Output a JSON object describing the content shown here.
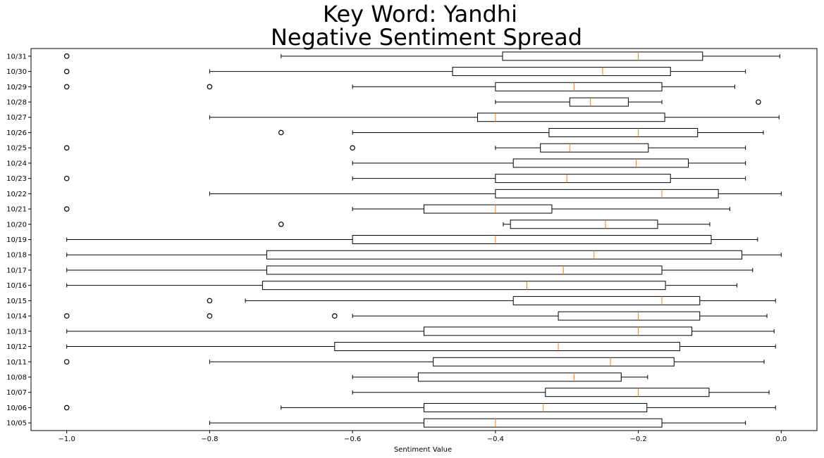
{
  "chart_data": {
    "type": "boxplot",
    "orientation": "horizontal",
    "title_lines": [
      "Key Word: Yandhi",
      "Negative Sentiment Spread"
    ],
    "xlabel": "Sentiment Value",
    "ylabel": "",
    "xlim": [
      -1.05,
      0.05
    ],
    "xticks": [
      -1.0,
      -0.8,
      -0.6,
      -0.4,
      -0.2,
      0.0
    ],
    "xtick_labels": [
      "−1.0",
      "−0.8",
      "−0.6",
      "−0.4",
      "−0.2",
      "0.0"
    ],
    "grid": false,
    "legend": "none",
    "colors": {
      "box": "#000000",
      "median": "#ff7f0e",
      "outlier": "#000000"
    },
    "categories": [
      "10/31",
      "10/30",
      "10/29",
      "10/28",
      "10/27",
      "10/26",
      "10/25",
      "10/24",
      "10/23",
      "10/22",
      "10/21",
      "10/20",
      "10/19",
      "10/18",
      "10/17",
      "10/16",
      "10/15",
      "10/14",
      "10/13",
      "10/12",
      "10/11",
      "10/08",
      "10/07",
      "10/06",
      "10/05"
    ],
    "boxes": [
      {
        "date": "10/31",
        "whislo": -0.7,
        "q1": -0.39,
        "med": -0.2,
        "q3": -0.11,
        "whishi": -0.002,
        "fliers": [
          -1.0
        ]
      },
      {
        "date": "10/30",
        "whislo": -0.8,
        "q1": -0.46,
        "med": -0.25,
        "q3": -0.155,
        "whishi": -0.05,
        "fliers": [
          -1.0
        ]
      },
      {
        "date": "10/29",
        "whislo": -0.6,
        "q1": -0.4,
        "med": -0.29,
        "q3": -0.167,
        "whishi": -0.065,
        "fliers": [
          -1.0,
          -0.8
        ]
      },
      {
        "date": "10/28",
        "whislo": -0.4,
        "q1": -0.296,
        "med": -0.267,
        "q3": -0.214,
        "whishi": -0.167,
        "fliers": [
          -0.032
        ]
      },
      {
        "date": "10/27",
        "whislo": -0.8,
        "q1": -0.425,
        "med": -0.4,
        "q3": -0.163,
        "whishi": -0.003,
        "fliers": []
      },
      {
        "date": "10/26",
        "whislo": -0.6,
        "q1": -0.325,
        "med": -0.2,
        "q3": -0.117,
        "whishi": -0.025,
        "fliers": [
          -0.7
        ]
      },
      {
        "date": "10/25",
        "whislo": -0.4,
        "q1": -0.337,
        "med": -0.296,
        "q3": -0.186,
        "whishi": -0.05,
        "fliers": [
          -1.0,
          -0.6
        ]
      },
      {
        "date": "10/24",
        "whislo": -0.6,
        "q1": -0.375,
        "med": -0.203,
        "q3": -0.13,
        "whishi": -0.05,
        "fliers": []
      },
      {
        "date": "10/23",
        "whislo": -0.6,
        "q1": -0.4,
        "med": -0.3,
        "q3": -0.155,
        "whishi": -0.05,
        "fliers": [
          -1.0
        ]
      },
      {
        "date": "10/22",
        "whislo": -0.8,
        "q1": -0.4,
        "med": -0.167,
        "q3": -0.088,
        "whishi": 0.0,
        "fliers": []
      },
      {
        "date": "10/21",
        "whislo": -0.6,
        "q1": -0.5,
        "med": -0.4,
        "q3": -0.321,
        "whishi": -0.072,
        "fliers": [
          -1.0
        ]
      },
      {
        "date": "10/20",
        "whislo": -0.389,
        "q1": -0.379,
        "med": -0.246,
        "q3": -0.173,
        "whishi": -0.1,
        "fliers": [
          -0.7
        ]
      },
      {
        "date": "10/19",
        "whislo": -1.0,
        "q1": -0.6,
        "med": -0.4,
        "q3": -0.098,
        "whishi": -0.033,
        "fliers": []
      },
      {
        "date": "10/18",
        "whislo": -1.0,
        "q1": -0.72,
        "med": -0.262,
        "q3": -0.055,
        "whishi": 0.0,
        "fliers": []
      },
      {
        "date": "10/17",
        "whislo": -1.0,
        "q1": -0.72,
        "med": -0.305,
        "q3": -0.167,
        "whishi": -0.04,
        "fliers": []
      },
      {
        "date": "10/16",
        "whislo": -1.0,
        "q1": -0.726,
        "med": -0.356,
        "q3": -0.162,
        "whishi": -0.062,
        "fliers": []
      },
      {
        "date": "10/15",
        "whislo": -0.75,
        "q1": -0.375,
        "med": -0.167,
        "q3": -0.114,
        "whishi": -0.008,
        "fliers": [
          -0.8
        ]
      },
      {
        "date": "10/14",
        "whislo": -0.6,
        "q1": -0.312,
        "med": -0.2,
        "q3": -0.114,
        "whishi": -0.02,
        "fliers": [
          -1.0,
          -0.8,
          -0.625
        ]
      },
      {
        "date": "10/13",
        "whislo": -1.0,
        "q1": -0.5,
        "med": -0.2,
        "q3": -0.125,
        "whishi": -0.01,
        "fliers": []
      },
      {
        "date": "10/12",
        "whislo": -1.0,
        "q1": -0.625,
        "med": -0.312,
        "q3": -0.142,
        "whishi": -0.008,
        "fliers": []
      },
      {
        "date": "10/11",
        "whislo": -0.8,
        "q1": -0.487,
        "med": -0.239,
        "q3": -0.15,
        "whishi": -0.024,
        "fliers": [
          -1.0
        ]
      },
      {
        "date": "10/08",
        "whislo": -0.6,
        "q1": -0.508,
        "med": -0.29,
        "q3": -0.224,
        "whishi": -0.187,
        "fliers": []
      },
      {
        "date": "10/07",
        "whislo": -0.6,
        "q1": -0.33,
        "med": -0.2,
        "q3": -0.101,
        "whishi": -0.017,
        "fliers": []
      },
      {
        "date": "10/06",
        "whislo": -0.7,
        "q1": -0.5,
        "med": -0.333,
        "q3": -0.188,
        "whishi": -0.008,
        "fliers": [
          -1.0
        ]
      },
      {
        "date": "10/05",
        "whislo": -0.8,
        "q1": -0.5,
        "med": -0.4,
        "q3": -0.167,
        "whishi": -0.05,
        "fliers": []
      }
    ]
  }
}
